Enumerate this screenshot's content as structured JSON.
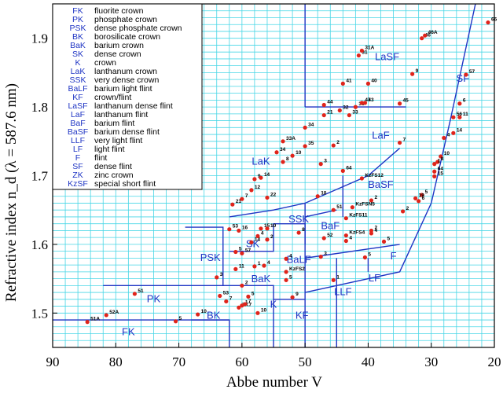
{
  "chart_data": {
    "type": "scatter",
    "title": "",
    "xlabel": "Abbe number V",
    "ylabel": "Refractive index n_d (λ = 587.6 nm)",
    "xlim": [
      90,
      20
    ],
    "ylim": [
      1.45,
      1.95
    ],
    "x_reversed": true,
    "x_ticks": [
      "90",
      "80",
      "70",
      "60",
      "50",
      "40",
      "30",
      "20"
    ],
    "y_ticks": [
      "1.5",
      "1.6",
      "1.7",
      "1.8",
      "1.9"
    ],
    "grid": true,
    "grid_color": "#47d6e6",
    "point_color": "#e0241b",
    "boundary_color": "#1f35c4",
    "legend_position": "top-left",
    "legend": [
      {
        "code": "FK",
        "name": "fluorite crown"
      },
      {
        "code": "PK",
        "name": "phosphate crown"
      },
      {
        "code": "PSK",
        "name": "dense phosphate crown"
      },
      {
        "code": "BK",
        "name": "borosilicate crown"
      },
      {
        "code": "BaK",
        "name": "barium crown"
      },
      {
        "code": "SK",
        "name": "dense crown"
      },
      {
        "code": "K",
        "name": "crown"
      },
      {
        "code": "LaK",
        "name": "lanthanum crown"
      },
      {
        "code": "SSK",
        "name": "very dense crown"
      },
      {
        "code": "BaLF",
        "name": "barium light flint"
      },
      {
        "code": "KF",
        "name": "crown/flint"
      },
      {
        "code": "LaSF",
        "name": "lanthanum dense flint"
      },
      {
        "code": "LaF",
        "name": "lanthanum flint"
      },
      {
        "code": "BaF",
        "name": "barium flint"
      },
      {
        "code": "BaSF",
        "name": "barium dense flint"
      },
      {
        "code": "LLF",
        "name": "very light flint"
      },
      {
        "code": "LF",
        "name": "light flint"
      },
      {
        "code": "F",
        "name": "flint"
      },
      {
        "code": "SF",
        "name": "dense flint"
      },
      {
        "code": "ZK",
        "name": "zinc crown"
      },
      {
        "code": "KzSF",
        "name": "special short flint"
      }
    ],
    "regions": [
      {
        "name": "FK",
        "x": 78,
        "y": 1.468
      },
      {
        "name": "PK",
        "x": 74,
        "y": 1.516
      },
      {
        "name": "PSK",
        "x": 65,
        "y": 1.576
      },
      {
        "name": "BK",
        "x": 64.5,
        "y": 1.492
      },
      {
        "name": "BaK",
        "x": 57,
        "y": 1.545
      },
      {
        "name": "SK",
        "x": 58.3,
        "y": 1.596
      },
      {
        "name": "K",
        "x": 55,
        "y": 1.508
      },
      {
        "name": "LaK",
        "x": 57,
        "y": 1.716
      },
      {
        "name": "SSK",
        "x": 51,
        "y": 1.632
      },
      {
        "name": "BaLF",
        "x": 51,
        "y": 1.573
      },
      {
        "name": "KF",
        "x": 50.5,
        "y": 1.492
      },
      {
        "name": "LaSF",
        "x": 37,
        "y": 1.868
      },
      {
        "name": "LaF",
        "x": 38,
        "y": 1.754
      },
      {
        "name": "BaF",
        "x": 46,
        "y": 1.622
      },
      {
        "name": "BaSF",
        "x": 38,
        "y": 1.682
      },
      {
        "name": "LLF",
        "x": 44,
        "y": 1.526
      },
      {
        "name": "LF",
        "x": 39,
        "y": 1.546
      },
      {
        "name": "F",
        "x": 36,
        "y": 1.578
      },
      {
        "name": "SF",
        "x": 25,
        "y": 1.837
      }
    ],
    "points": [
      {
        "label": "51A",
        "x": 84.5,
        "y": 1.487
      },
      {
        "label": "52A",
        "x": 81.5,
        "y": 1.497
      },
      {
        "label": "51",
        "x": 77,
        "y": 1.528
      },
      {
        "label": "5",
        "x": 70.5,
        "y": 1.488
      },
      {
        "label": "10",
        "x": 67,
        "y": 1.498
      },
      {
        "label": "53",
        "x": 63.5,
        "y": 1.525
      },
      {
        "label": "7",
        "x": 62.5,
        "y": 1.517
      },
      {
        "label": "3",
        "x": 64,
        "y": 1.552
      },
      {
        "label": "2",
        "x": 60,
        "y": 1.54
      },
      {
        "label": "53",
        "x": 62,
        "y": 1.622
      },
      {
        "label": "ZK7",
        "x": 60.5,
        "y": 1.508
      },
      {
        "label": "1",
        "x": 60,
        "y": 1.511
      },
      {
        "label": "7",
        "x": 59.5,
        "y": 1.513
      },
      {
        "label": "5",
        "x": 59,
        "y": 1.524
      },
      {
        "label": "10",
        "x": 57.5,
        "y": 1.5
      },
      {
        "label": "4",
        "x": 53,
        "y": 1.579
      },
      {
        "label": "KzFS2",
        "x": 53,
        "y": 1.56
      },
      {
        "label": "5",
        "x": 53,
        "y": 1.548
      },
      {
        "label": "9",
        "x": 52,
        "y": 1.523
      },
      {
        "label": "16",
        "x": 60.5,
        "y": 1.62
      },
      {
        "label": "5",
        "x": 61,
        "y": 1.589
      },
      {
        "label": "57",
        "x": 60,
        "y": 1.587
      },
      {
        "label": "11",
        "x": 61,
        "y": 1.564
      },
      {
        "label": "14",
        "x": 58.5,
        "y": 1.603
      },
      {
        "label": "4",
        "x": 57.5,
        "y": 1.612
      },
      {
        "label": "15",
        "x": 57,
        "y": 1.623
      },
      {
        "label": "10",
        "x": 56,
        "y": 1.623
      },
      {
        "label": "2",
        "x": 56,
        "y": 1.607
      },
      {
        "label": "8",
        "x": 51,
        "y": 1.617
      },
      {
        "label": "1",
        "x": 58,
        "y": 1.568
      },
      {
        "label": "4",
        "x": 56.5,
        "y": 1.569
      },
      {
        "label": "21",
        "x": 61.5,
        "y": 1.658
      },
      {
        "label": "7",
        "x": 60,
        "y": 1.666
      },
      {
        "label": "22",
        "x": 56,
        "y": 1.668
      },
      {
        "label": "12",
        "x": 58.5,
        "y": 1.679
      },
      {
        "label": "9",
        "x": 58,
        "y": 1.695
      },
      {
        "label": "14",
        "x": 57,
        "y": 1.697
      },
      {
        "label": "8",
        "x": 53.5,
        "y": 1.72
      },
      {
        "label": "10",
        "x": 52,
        "y": 1.729
      },
      {
        "label": "34",
        "x": 54.5,
        "y": 1.734
      },
      {
        "label": "33A",
        "x": 53.5,
        "y": 1.75
      },
      {
        "label": "35",
        "x": 50,
        "y": 1.743
      },
      {
        "label": "3",
        "x": 47.5,
        "y": 1.717
      },
      {
        "label": "2",
        "x": 45.5,
        "y": 1.744
      },
      {
        "label": "34",
        "x": 50,
        "y": 1.77
      },
      {
        "label": "21",
        "x": 47,
        "y": 1.788
      },
      {
        "label": "44",
        "x": 47,
        "y": 1.803
      },
      {
        "label": "32",
        "x": 44.5,
        "y": 1.795
      },
      {
        "label": "33",
        "x": 43,
        "y": 1.788
      },
      {
        "label": "36",
        "x": 42,
        "y": 1.8
      },
      {
        "label": "47",
        "x": 41,
        "y": 1.806
      },
      {
        "label": "43",
        "x": 40.5,
        "y": 1.806
      },
      {
        "label": "45",
        "x": 35,
        "y": 1.805
      },
      {
        "label": "41",
        "x": 44,
        "y": 1.834
      },
      {
        "label": "40",
        "x": 40,
        "y": 1.834
      },
      {
        "label": "31",
        "x": 41.5,
        "y": 1.875
      },
      {
        "label": "31A",
        "x": 41,
        "y": 1.882
      },
      {
        "label": "9",
        "x": 33,
        "y": 1.848
      },
      {
        "label": "46",
        "x": 31.5,
        "y": 1.9
      },
      {
        "label": "46A",
        "x": 31,
        "y": 1.904
      },
      {
        "label": "66",
        "x": 21,
        "y": 1.923
      },
      {
        "label": "57",
        "x": 24.5,
        "y": 1.847
      },
      {
        "label": "6",
        "x": 25.5,
        "y": 1.805
      },
      {
        "label": "56",
        "x": 26.5,
        "y": 1.785
      },
      {
        "label": "11",
        "x": 25.5,
        "y": 1.785
      },
      {
        "label": "14",
        "x": 26.5,
        "y": 1.762
      },
      {
        "label": "4",
        "x": 28,
        "y": 1.755
      },
      {
        "label": "7",
        "x": 35,
        "y": 1.748
      },
      {
        "label": "10",
        "x": 28.5,
        "y": 1.728
      },
      {
        "label": "8",
        "x": 29,
        "y": 1.72
      },
      {
        "label": "1",
        "x": 29.5,
        "y": 1.717
      },
      {
        "label": "64",
        "x": 29.5,
        "y": 1.706
      },
      {
        "label": "15",
        "x": 29.5,
        "y": 1.699
      },
      {
        "label": "5",
        "x": 31.5,
        "y": 1.672
      },
      {
        "label": "19",
        "x": 32.5,
        "y": 1.667
      },
      {
        "label": "6",
        "x": 32,
        "y": 1.663
      },
      {
        "label": "2",
        "x": 34.5,
        "y": 1.648
      },
      {
        "label": "64",
        "x": 44,
        "y": 1.707
      },
      {
        "label": "KzFS12",
        "x": 41,
        "y": 1.696
      },
      {
        "label": "10",
        "x": 48,
        "y": 1.67
      },
      {
        "label": "2",
        "x": 39.5,
        "y": 1.664
      },
      {
        "label": "51",
        "x": 45.5,
        "y": 1.65
      },
      {
        "label": "KzFSN5",
        "x": 42.5,
        "y": 1.654
      },
      {
        "label": "KzFS11",
        "x": 43.5,
        "y": 1.638
      },
      {
        "label": "KzFS4",
        "x": 43.5,
        "y": 1.613
      },
      {
        "label": "52",
        "x": 47,
        "y": 1.609
      },
      {
        "label": "4",
        "x": 43.5,
        "y": 1.605
      },
      {
        "label": "2",
        "x": 39.5,
        "y": 1.62
      },
      {
        "label": "4",
        "x": 39.5,
        "y": 1.616
      },
      {
        "label": "5",
        "x": 37.5,
        "y": 1.604
      },
      {
        "label": "3",
        "x": 47.5,
        "y": 1.582
      },
      {
        "label": "5",
        "x": 40.5,
        "y": 1.581
      },
      {
        "label": "1",
        "x": 45.5,
        "y": 1.548
      }
    ],
    "boundaries": [
      [
        [
          90,
          1.49
        ],
        [
          62,
          1.49
        ],
        [
          62,
          1.45
        ]
      ],
      [
        [
          82,
          1.54
        ],
        [
          62,
          1.54
        ]
      ],
      [
        [
          68,
          1.49
        ],
        [
          62,
          1.49
        ]
      ],
      [
        [
          69,
          1.625
        ],
        [
          63,
          1.625
        ],
        [
          63,
          1.54
        ]
      ],
      [
        [
          62,
          1.59
        ],
        [
          55,
          1.59
        ],
        [
          55,
          1.63
        ],
        [
          50,
          1.63
        ],
        [
          50,
          1.45
        ]
      ],
      [
        [
          62,
          1.54
        ],
        [
          55,
          1.54
        ],
        [
          55,
          1.45
        ]
      ],
      [
        [
          55,
          1.52
        ],
        [
          50,
          1.52
        ]
      ],
      [
        [
          62,
          1.64
        ],
        [
          55,
          1.65
        ],
        [
          50,
          1.66
        ],
        [
          45,
          1.68
        ],
        [
          40,
          1.7
        ],
        [
          35,
          1.74
        ]
      ],
      [
        [
          50,
          1.8
        ],
        [
          50,
          1.95
        ]
      ],
      [
        [
          50,
          1.8
        ],
        [
          34,
          1.8
        ]
      ],
      [
        [
          50,
          1.53
        ],
        [
          35,
          1.56
        ],
        [
          30,
          1.66
        ],
        [
          27,
          1.78
        ],
        [
          23,
          1.95
        ]
      ],
      [
        [
          50,
          1.58
        ],
        [
          35,
          1.6
        ]
      ],
      [
        [
          50,
          1.64
        ],
        [
          45,
          1.65
        ]
      ],
      [
        [
          44,
          1.7
        ],
        [
          44,
          1.64
        ]
      ],
      [
        [
          45,
          1.58
        ],
        [
          45,
          1.45
        ]
      ],
      [
        [
          40,
          1.58
        ],
        [
          40,
          1.56
        ]
      ],
      [
        [
          50,
          1.66
        ],
        [
          50,
          1.6
        ]
      ]
    ]
  }
}
